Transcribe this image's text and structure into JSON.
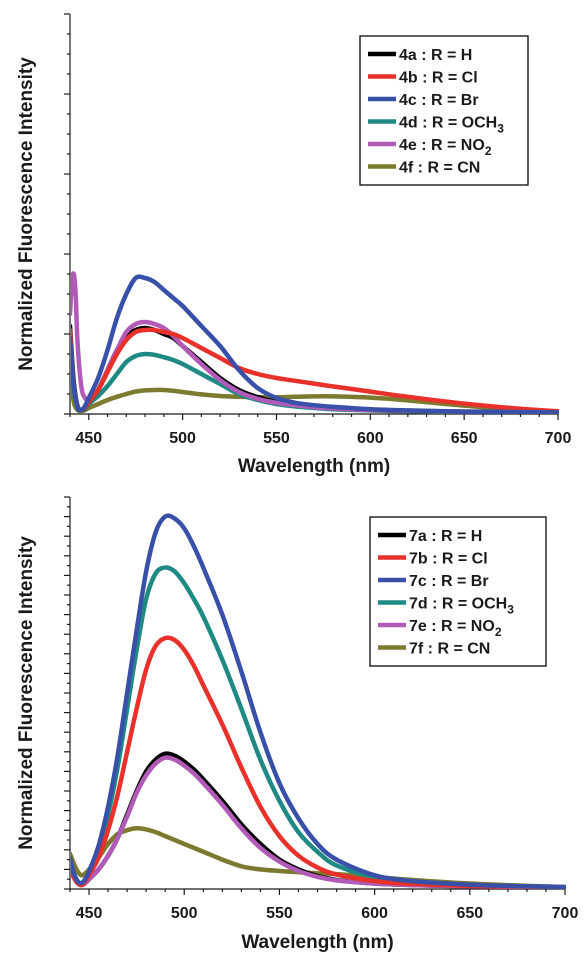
{
  "chart_data": [
    {
      "type": "line",
      "title": "",
      "xlabel": "Wavelength (nm)",
      "ylabel": "Normalized Fluorescence Intensity",
      "xlim": [
        440,
        700
      ],
      "ylim": [
        0,
        100
      ],
      "x_ticks": [
        450,
        500,
        550,
        600,
        650,
        700
      ],
      "y_tick_labels": false,
      "legend_position": "top-right",
      "series": [
        {
          "name": "4a : R = H",
          "label_prefix": "4a : R = H",
          "label_sub": "",
          "label_suffix": "",
          "color": "#000000",
          "x": [
            440,
            442,
            444,
            446,
            448,
            450,
            455,
            460,
            465,
            470,
            475,
            480,
            485,
            490,
            495,
            500,
            510,
            520,
            530,
            540,
            550,
            560,
            570,
            580,
            600,
            620,
            650,
            680,
            700
          ],
          "y": [
            22,
            8,
            2,
            1,
            1.5,
            3,
            6,
            11,
            16,
            19.5,
            21,
            21.5,
            21,
            20,
            19,
            17,
            13,
            9,
            6,
            4.2,
            3,
            2.3,
            1.8,
            1.4,
            1,
            0.8,
            0.6,
            0.5,
            0.4
          ]
        },
        {
          "name": "4b : R = Cl",
          "label_prefix": "4b : R = Cl",
          "label_sub": "",
          "label_suffix": "",
          "color": "#e8312a",
          "x": [
            440,
            442,
            444,
            446,
            448,
            450,
            455,
            460,
            465,
            470,
            475,
            480,
            485,
            490,
            495,
            500,
            510,
            520,
            530,
            540,
            550,
            560,
            570,
            580,
            600,
            620,
            650,
            680,
            700
          ],
          "y": [
            21,
            7,
            2,
            1,
            1.5,
            3,
            6,
            10.5,
            15,
            18.5,
            20.5,
            21,
            21,
            20.5,
            20,
            19,
            16.5,
            14,
            11.5,
            10,
            9,
            8.3,
            7.6,
            6.9,
            5.6,
            4.3,
            2.6,
            1.3,
            0.7
          ]
        },
        {
          "name": "4c : R = Br",
          "label_prefix": "4c : R = Br",
          "label_sub": "",
          "label_suffix": "",
          "color": "#3850a8",
          "x": [
            440,
            442,
            444,
            446,
            448,
            450,
            455,
            460,
            465,
            470,
            475,
            480,
            485,
            490,
            495,
            500,
            510,
            520,
            530,
            540,
            550,
            560,
            570,
            580,
            600,
            620,
            650,
            680,
            700
          ],
          "y": [
            19,
            7,
            2,
            1,
            2,
            4,
            9,
            16,
            24,
            30,
            34,
            34,
            33,
            31,
            29,
            27,
            22,
            17,
            11,
            6.5,
            4,
            2.8,
            2.2,
            1.8,
            1.2,
            0.9,
            0.6,
            0.5,
            0.4
          ]
        },
        {
          "name": "4d : R = OCH3",
          "label_prefix": "4d : R = OCH",
          "label_sub": "3",
          "label_suffix": "",
          "color": "#1f8a84",
          "x": [
            440,
            442,
            444,
            446,
            448,
            450,
            455,
            460,
            465,
            470,
            475,
            480,
            485,
            490,
            495,
            500,
            510,
            520,
            530,
            540,
            550,
            560,
            570,
            580,
            600,
            620,
            650,
            680,
            700
          ],
          "y": [
            16,
            6,
            1.5,
            1,
            1.2,
            2.5,
            4.5,
            7,
            10,
            13,
            14.5,
            15,
            14.8,
            14.2,
            13.5,
            12.5,
            10,
            7.5,
            5,
            3.5,
            2.5,
            1.9,
            1.5,
            1.2,
            0.9,
            0.7,
            0.5,
            0.4,
            0.3
          ]
        },
        {
          "name": "4e : R = NO2",
          "label_prefix": "4e : R = NO",
          "label_sub": "2",
          "label_suffix": "",
          "color": "#b25ab8",
          "x": [
            440,
            441,
            442,
            443,
            444,
            446,
            448,
            450,
            455,
            460,
            465,
            470,
            475,
            480,
            485,
            490,
            495,
            500,
            510,
            520,
            530,
            540,
            550,
            560,
            570,
            580,
            600,
            620,
            650,
            680,
            700
          ],
          "y": [
            25,
            33,
            35,
            30,
            18,
            7,
            4,
            4,
            6,
            11,
            16,
            20.5,
            22.5,
            23,
            22.5,
            21.5,
            19.5,
            17,
            12.5,
            8.5,
            5.5,
            3.8,
            2.8,
            2.2,
            1.7,
            1.4,
            1,
            0.8,
            0.6,
            0.5,
            0.4
          ]
        },
        {
          "name": "4f : R = CN",
          "label_prefix": "4f  : R = CN",
          "label_sub": "",
          "label_suffix": "",
          "color": "#7b7a2e",
          "x": [
            440,
            442,
            444,
            446,
            448,
            450,
            455,
            460,
            465,
            470,
            475,
            480,
            485,
            490,
            495,
            500,
            510,
            520,
            530,
            540,
            550,
            560,
            570,
            580,
            600,
            620,
            650,
            680,
            700
          ],
          "y": [
            10,
            3,
            1,
            0.8,
            1,
            1.5,
            2.5,
            3.5,
            4.3,
            5,
            5.6,
            5.9,
            6,
            6,
            5.8,
            5.5,
            4.9,
            4.5,
            4.3,
            4.2,
            4.2,
            4.3,
            4.4,
            4.4,
            4.1,
            3.4,
            2.1,
            1,
            0.5
          ]
        }
      ]
    },
    {
      "type": "line",
      "title": "",
      "xlabel": "Wavelength (nm)",
      "ylabel": "Normalized Fluorescence Intensity",
      "xlim": [
        440,
        700
      ],
      "ylim": [
        0,
        100
      ],
      "x_ticks": [
        450,
        500,
        550,
        600,
        650,
        700
      ],
      "y_tick_labels": false,
      "legend_position": "top-right",
      "series": [
        {
          "name": "7a : R = H",
          "label_prefix": "7a : R = H",
          "label_sub": "",
          "label_suffix": "",
          "color": "#000000",
          "x": [
            440,
            442,
            444,
            446,
            448,
            450,
            455,
            460,
            465,
            470,
            475,
            480,
            485,
            490,
            495,
            500,
            505,
            510,
            520,
            530,
            540,
            550,
            560,
            570,
            580,
            600,
            620,
            650,
            680,
            700
          ],
          "y": [
            5,
            3,
            1.5,
            1,
            1.5,
            2.5,
            5,
            8.5,
            13,
            19,
            25,
            30,
            33,
            34.5,
            34,
            32.5,
            30.5,
            28,
            22.5,
            16.5,
            11.5,
            7.5,
            5,
            3.3,
            2.3,
            1.4,
            1,
            0.7,
            0.5,
            0.4
          ]
        },
        {
          "name": "7b : R = Cl",
          "label_prefix": "7b : R = Cl",
          "label_sub": "",
          "label_suffix": "",
          "color": "#e8312a",
          "x": [
            440,
            442,
            444,
            446,
            448,
            450,
            455,
            460,
            465,
            470,
            475,
            480,
            485,
            490,
            495,
            500,
            505,
            510,
            520,
            530,
            540,
            550,
            560,
            570,
            580,
            600,
            620,
            650,
            680,
            700
          ],
          "y": [
            6,
            3,
            1.5,
            1,
            2,
            3.5,
            8,
            15,
            24,
            35,
            46,
            56,
            62,
            64,
            63.5,
            61,
            57,
            52,
            42,
            31,
            21,
            13.5,
            8.5,
            5.5,
            3.7,
            2,
            1.3,
            0.8,
            0.6,
            0.4
          ]
        },
        {
          "name": "7c : R = Br",
          "label_prefix": "7c : R = Br",
          "label_sub": "",
          "label_suffix": "",
          "color": "#3850a8",
          "x": [
            440,
            442,
            444,
            446,
            448,
            450,
            455,
            460,
            465,
            470,
            475,
            480,
            485,
            490,
            495,
            500,
            505,
            510,
            520,
            530,
            540,
            550,
            560,
            570,
            580,
            600,
            620,
            650,
            680,
            700
          ],
          "y": [
            8,
            4,
            2,
            1.5,
            2.5,
            4.5,
            11,
            21,
            34,
            50,
            66,
            81,
            91,
            95,
            94.5,
            92,
            87.5,
            82,
            70,
            55.5,
            40,
            27,
            18,
            11.5,
            7.5,
            3.5,
            2,
            1.1,
            0.7,
            0.5
          ]
        },
        {
          "name": "7d : R = OCH3",
          "label_prefix": "7d : R = OCH",
          "label_sub": "3",
          "label_suffix": "",
          "color": "#1f8a84",
          "x": [
            440,
            442,
            444,
            446,
            448,
            450,
            455,
            460,
            465,
            470,
            475,
            480,
            485,
            490,
            495,
            500,
            505,
            510,
            520,
            530,
            540,
            550,
            560,
            570,
            580,
            600,
            620,
            650,
            680,
            700
          ],
          "y": [
            7,
            4,
            2,
            1.5,
            2.5,
            4,
            10,
            19,
            31,
            46,
            61,
            74,
            80.5,
            82,
            81,
            78,
            74,
            69.5,
            58.5,
            46,
            33,
            22.5,
            14.5,
            9.5,
            6,
            3,
            1.8,
            1,
            0.6,
            0.4
          ]
        },
        {
          "name": "7e : R = NO2",
          "label_prefix": "7e : R = NO",
          "label_sub": "2",
          "label_suffix": "",
          "color": "#b25ab8",
          "x": [
            440,
            442,
            444,
            446,
            448,
            450,
            455,
            460,
            465,
            470,
            475,
            480,
            485,
            490,
            495,
            500,
            505,
            510,
            520,
            530,
            540,
            550,
            560,
            570,
            580,
            600,
            620,
            650,
            680,
            700
          ],
          "y": [
            5.5,
            3,
            1.5,
            1,
            1.5,
            2.5,
            5,
            8.5,
            13,
            18.5,
            24.5,
            29,
            32,
            33.5,
            33,
            31.5,
            29.5,
            27,
            21.5,
            15.5,
            10.5,
            7,
            4.6,
            3.1,
            2.2,
            1.4,
            1,
            0.7,
            0.5,
            0.4
          ]
        },
        {
          "name": "7f : R = CN",
          "label_prefix": "7f  : R = CN",
          "label_sub": "",
          "label_suffix": "",
          "color": "#7b7a2e",
          "x": [
            440,
            442,
            444,
            446,
            448,
            450,
            455,
            460,
            465,
            470,
            475,
            480,
            485,
            490,
            495,
            500,
            510,
            520,
            530,
            540,
            550,
            560,
            570,
            580,
            600,
            620,
            650,
            680,
            700
          ],
          "y": [
            9,
            6.5,
            4.5,
            3.5,
            4,
            5,
            8,
            11.5,
            14,
            15,
            15.5,
            15.2,
            14.5,
            13.5,
            12.5,
            11.5,
            9.5,
            7.5,
            5.8,
            5,
            4.6,
            4.3,
            4,
            3.8,
            3.1,
            2.3,
            1.4,
            0.8,
            0.5
          ]
        }
      ]
    }
  ]
}
